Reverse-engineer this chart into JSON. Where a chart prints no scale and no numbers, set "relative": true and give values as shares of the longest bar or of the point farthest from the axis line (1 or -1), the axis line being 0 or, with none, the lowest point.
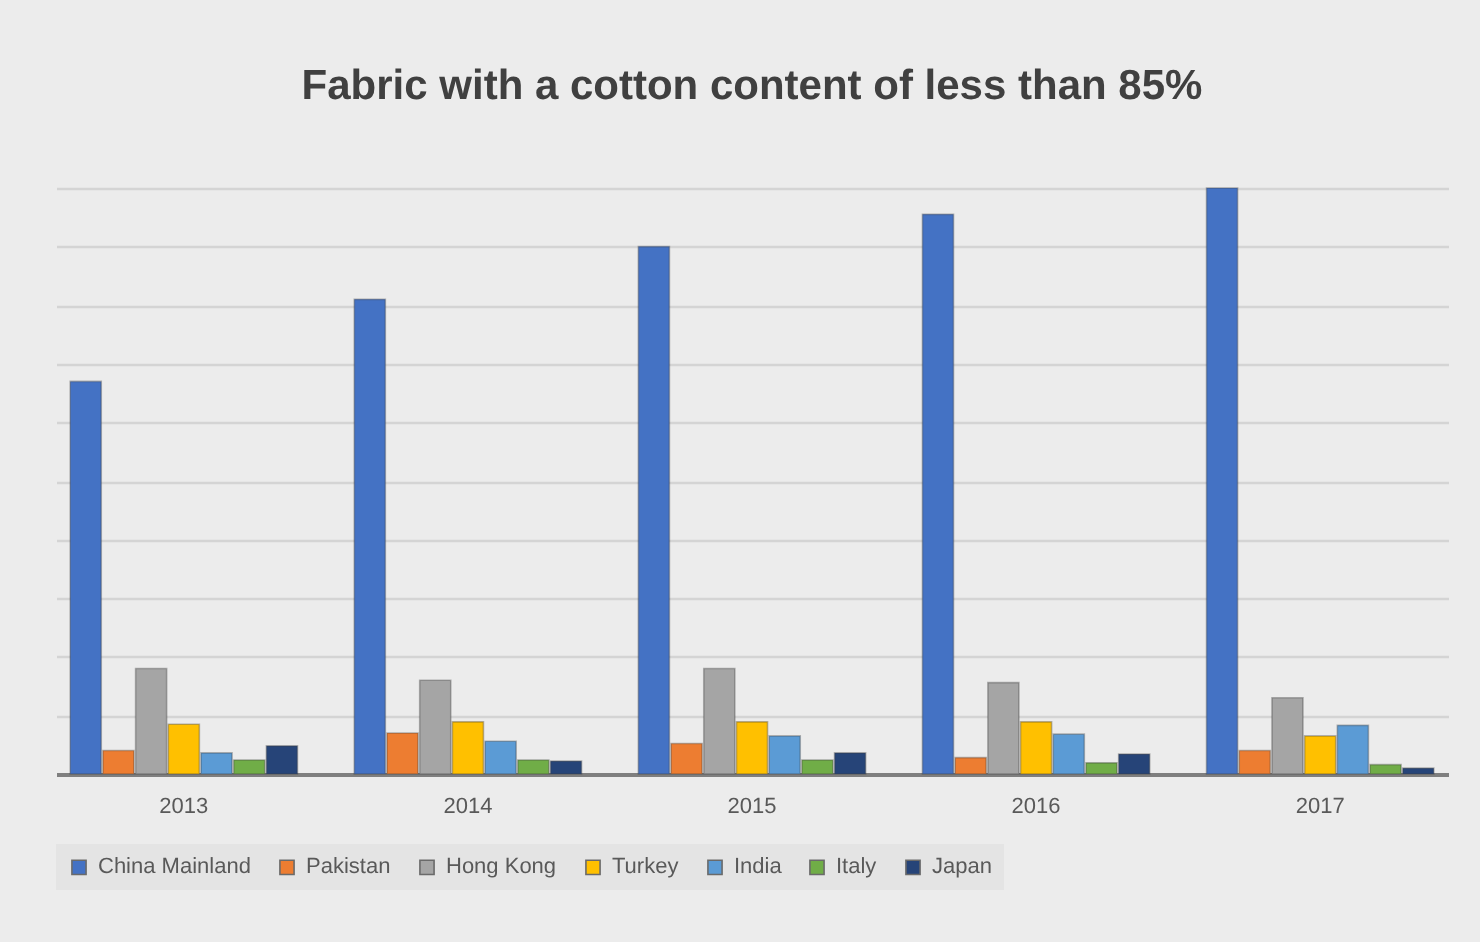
{
  "chart_data": {
    "type": "bar",
    "title": "Fabric with a cotton content of less than 85%",
    "relative": true,
    "categories": [
      "2013",
      "2014",
      "2015",
      "2016",
      "2017"
    ],
    "series": [
      {
        "name": "China Mainland",
        "color": "#4472c4",
        "values": [
          0.67,
          0.81,
          0.9,
          0.955,
          1
        ]
      },
      {
        "name": "Pakistan",
        "color": "#ed7d31",
        "values": [
          0.04,
          0.07,
          0.052,
          0.028,
          0.04
        ]
      },
      {
        "name": "Hong Kong",
        "color": "#a5a5a5",
        "values": [
          0.18,
          0.16,
          0.18,
          0.156,
          0.13
        ]
      },
      {
        "name": "Turkey",
        "color": "#ffc000",
        "values": [
          0.085,
          0.089,
          0.089,
          0.089,
          0.065
        ]
      },
      {
        "name": "India",
        "color": "#5b9bd5",
        "values": [
          0.036,
          0.056,
          0.065,
          0.068,
          0.083
        ]
      },
      {
        "name": "Italy",
        "color": "#70ad47",
        "values": [
          0.024,
          0.024,
          0.024,
          0.019,
          0.016
        ]
      },
      {
        "name": "Japan",
        "color": "#264478",
        "values": [
          0.048,
          0.022,
          0.036,
          0.034,
          0.01
        ]
      }
    ],
    "grid": true,
    "legend": "bottom"
  }
}
